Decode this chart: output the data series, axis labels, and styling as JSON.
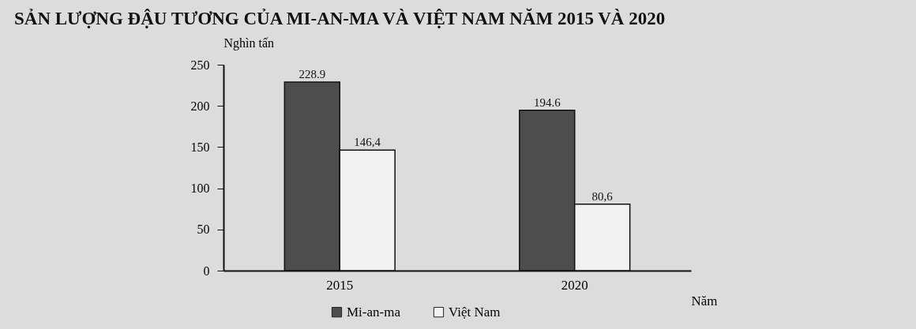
{
  "chart_data": {
    "type": "bar",
    "title": "SẢN LƯỢNG ĐẬU TƯƠNG CỦA MI-AN-MA VÀ VIỆT NAM NĂM 2015 VÀ 2020",
    "xlabel": "Năm",
    "ylabel": "Nghìn tấn",
    "categories": [
      "2015",
      "2020"
    ],
    "series": [
      {
        "name": "Mi-an-ma",
        "color": "#4d4d4d",
        "values": [
          228.9,
          194.6
        ],
        "value_labels": [
          "228.9",
          "194.6"
        ]
      },
      {
        "name": "Việt Nam",
        "color": "#f2f2f2",
        "values": [
          146.4,
          80.6
        ],
        "value_labels": [
          "146,4",
          "80,6"
        ]
      }
    ],
    "ylim": [
      0,
      250
    ],
    "yticks": [
      0,
      50,
      100,
      150,
      200,
      250
    ],
    "legend": "bottom"
  }
}
